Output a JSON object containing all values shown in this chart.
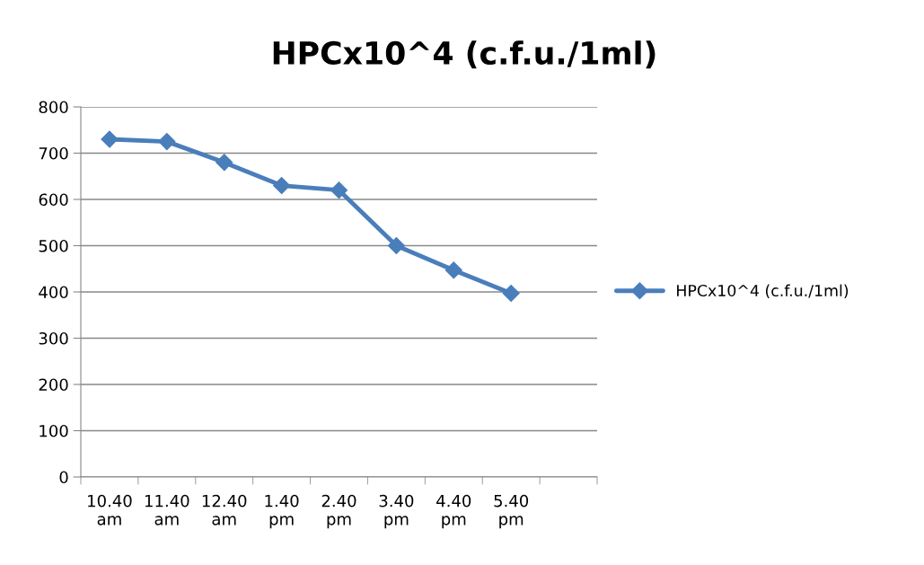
{
  "chart_data": {
    "type": "line",
    "title": "HPCx10^4 (c.f.u./1ml)",
    "categories": [
      "10.40\nam",
      "11.40\nam",
      "12.40\nam",
      "1.40\npm",
      "2.40\npm",
      "3.40\npm",
      "4.40\npm",
      "5.40\npm",
      null
    ],
    "series": [
      {
        "name": "HPCx10^4 (c.f.u./1ml)",
        "color": "#4a7ebb",
        "values": [
          730,
          725,
          680,
          630,
          620,
          500,
          447,
          397,
          null
        ]
      }
    ],
    "ylim": [
      0,
      800
    ],
    "yticks": [
      0,
      100,
      200,
      300,
      400,
      500,
      600,
      700,
      800
    ],
    "grid": "y",
    "legend": "right",
    "marker": "diamond",
    "line_style": "solid"
  }
}
